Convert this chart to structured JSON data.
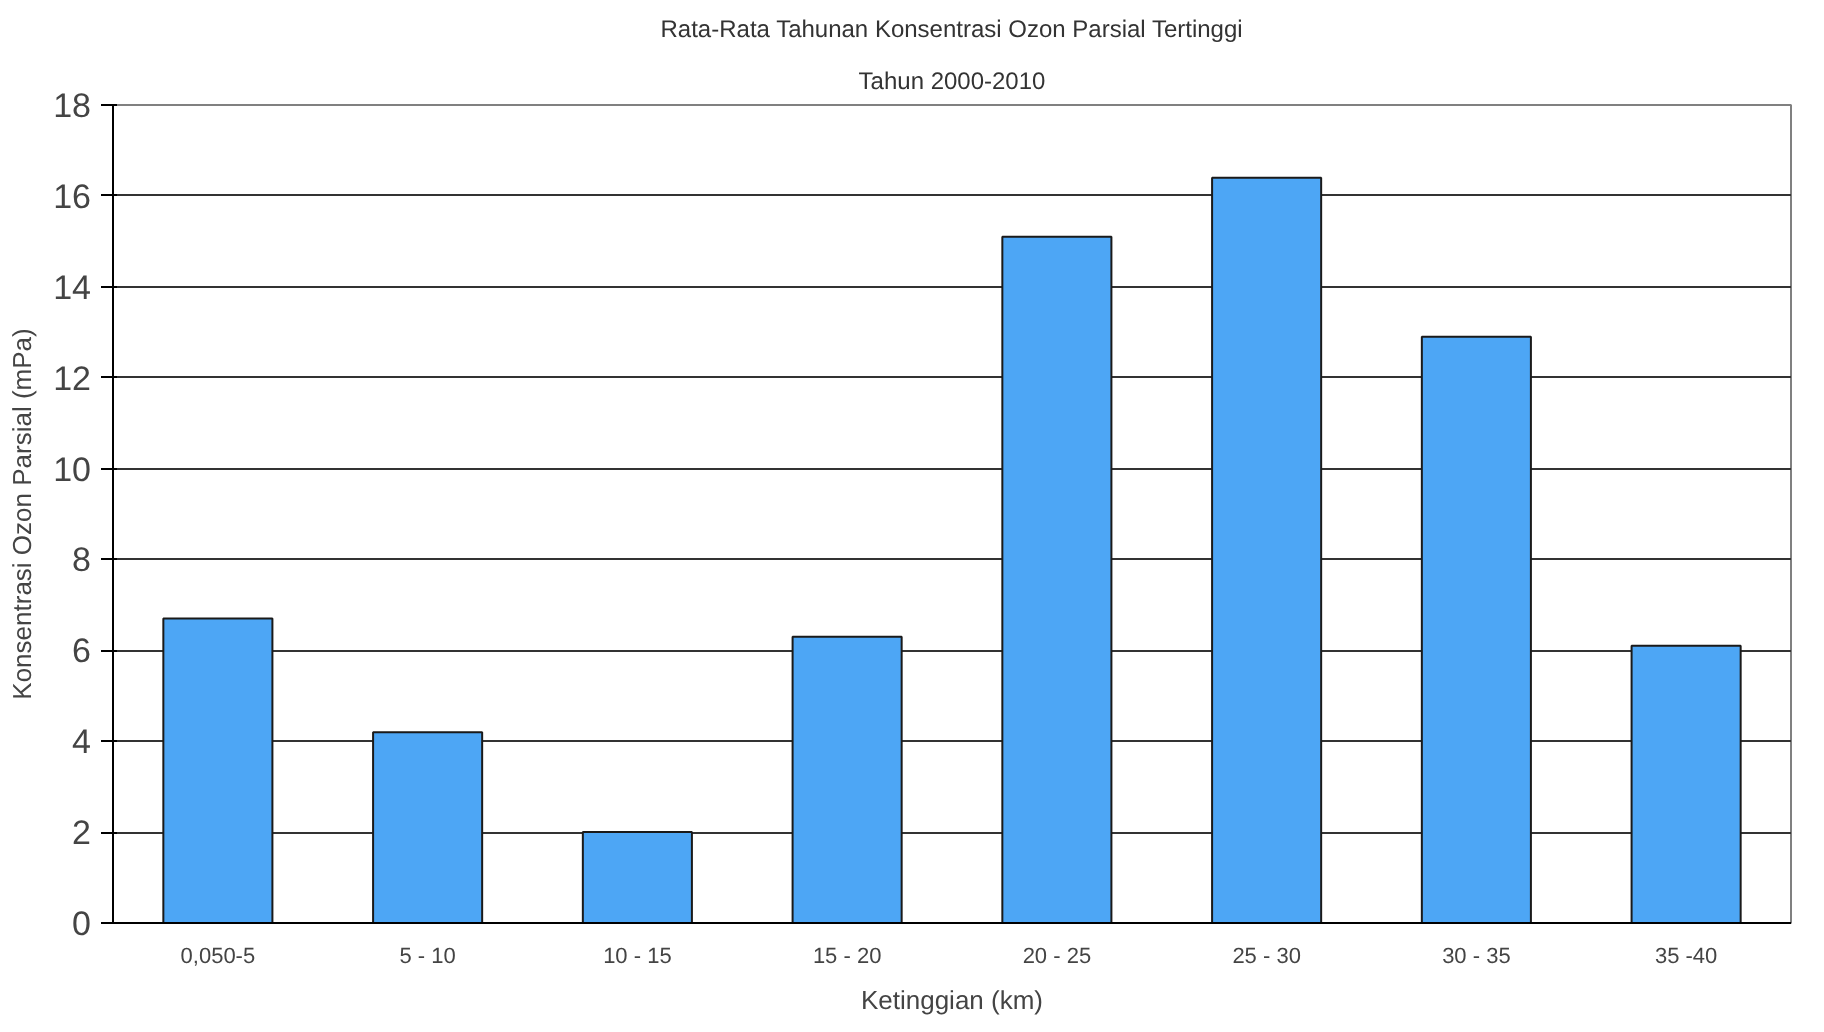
{
  "chart_data": {
    "type": "bar",
    "title": "Rata-Rata Tahunan Konsentrasi Ozon Parsial Tertinggi",
    "subtitle": "Tahun 2000-2010",
    "xlabel": "Ketinggian (km)",
    "ylabel": "Konsentrasi Ozon Parsial (mPa)",
    "categories": [
      "0,050-5",
      "5 - 10",
      "10 - 15",
      "15 - 20",
      "20 - 25",
      "25 - 30",
      "30 - 35",
      "35 -40"
    ],
    "values": [
      6.7,
      4.2,
      2.0,
      6.3,
      15.1,
      16.4,
      12.9,
      6.1
    ],
    "color": "#4da6f5",
    "ylim": [
      0,
      18
    ],
    "yticks": [
      0,
      2,
      4,
      6,
      8,
      10,
      12,
      14,
      16,
      18
    ],
    "grid": "y"
  }
}
